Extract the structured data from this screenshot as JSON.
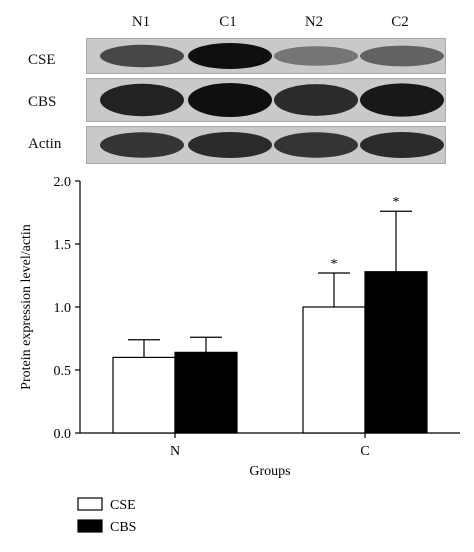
{
  "blot": {
    "lanes": [
      "N1",
      "C1",
      "N2",
      "C2"
    ],
    "rows": [
      {
        "label": "CSE",
        "band_intensity": [
          0.7,
          1.0,
          0.45,
          0.55
        ]
      },
      {
        "label": "CBS",
        "band_intensity": [
          0.9,
          1.0,
          0.85,
          0.95
        ]
      },
      {
        "label": "Actin",
        "band_intensity": [
          0.8,
          0.85,
          0.8,
          0.85
        ]
      }
    ]
  },
  "chart_data": {
    "type": "bar",
    "categories": [
      "N",
      "C"
    ],
    "series": [
      {
        "name": "CSE",
        "values": [
          0.6,
          1.0
        ],
        "errors": [
          0.14,
          0.27
        ],
        "significance": [
          "",
          "*"
        ],
        "color": "#ffffff"
      },
      {
        "name": "CBS",
        "values": [
          0.64,
          1.28
        ],
        "errors": [
          0.12,
          0.48
        ],
        "significance": [
          "",
          "*"
        ],
        "color": "#000000"
      }
    ],
    "xlabel": "Groups",
    "ylabel": "Protein expression level/actin",
    "ylim": [
      0,
      2.0
    ],
    "yticks": [
      "0.0",
      "0.5",
      "1.0",
      "1.5",
      "2.0"
    ],
    "grid": false,
    "legend_position": "bottom-left"
  }
}
